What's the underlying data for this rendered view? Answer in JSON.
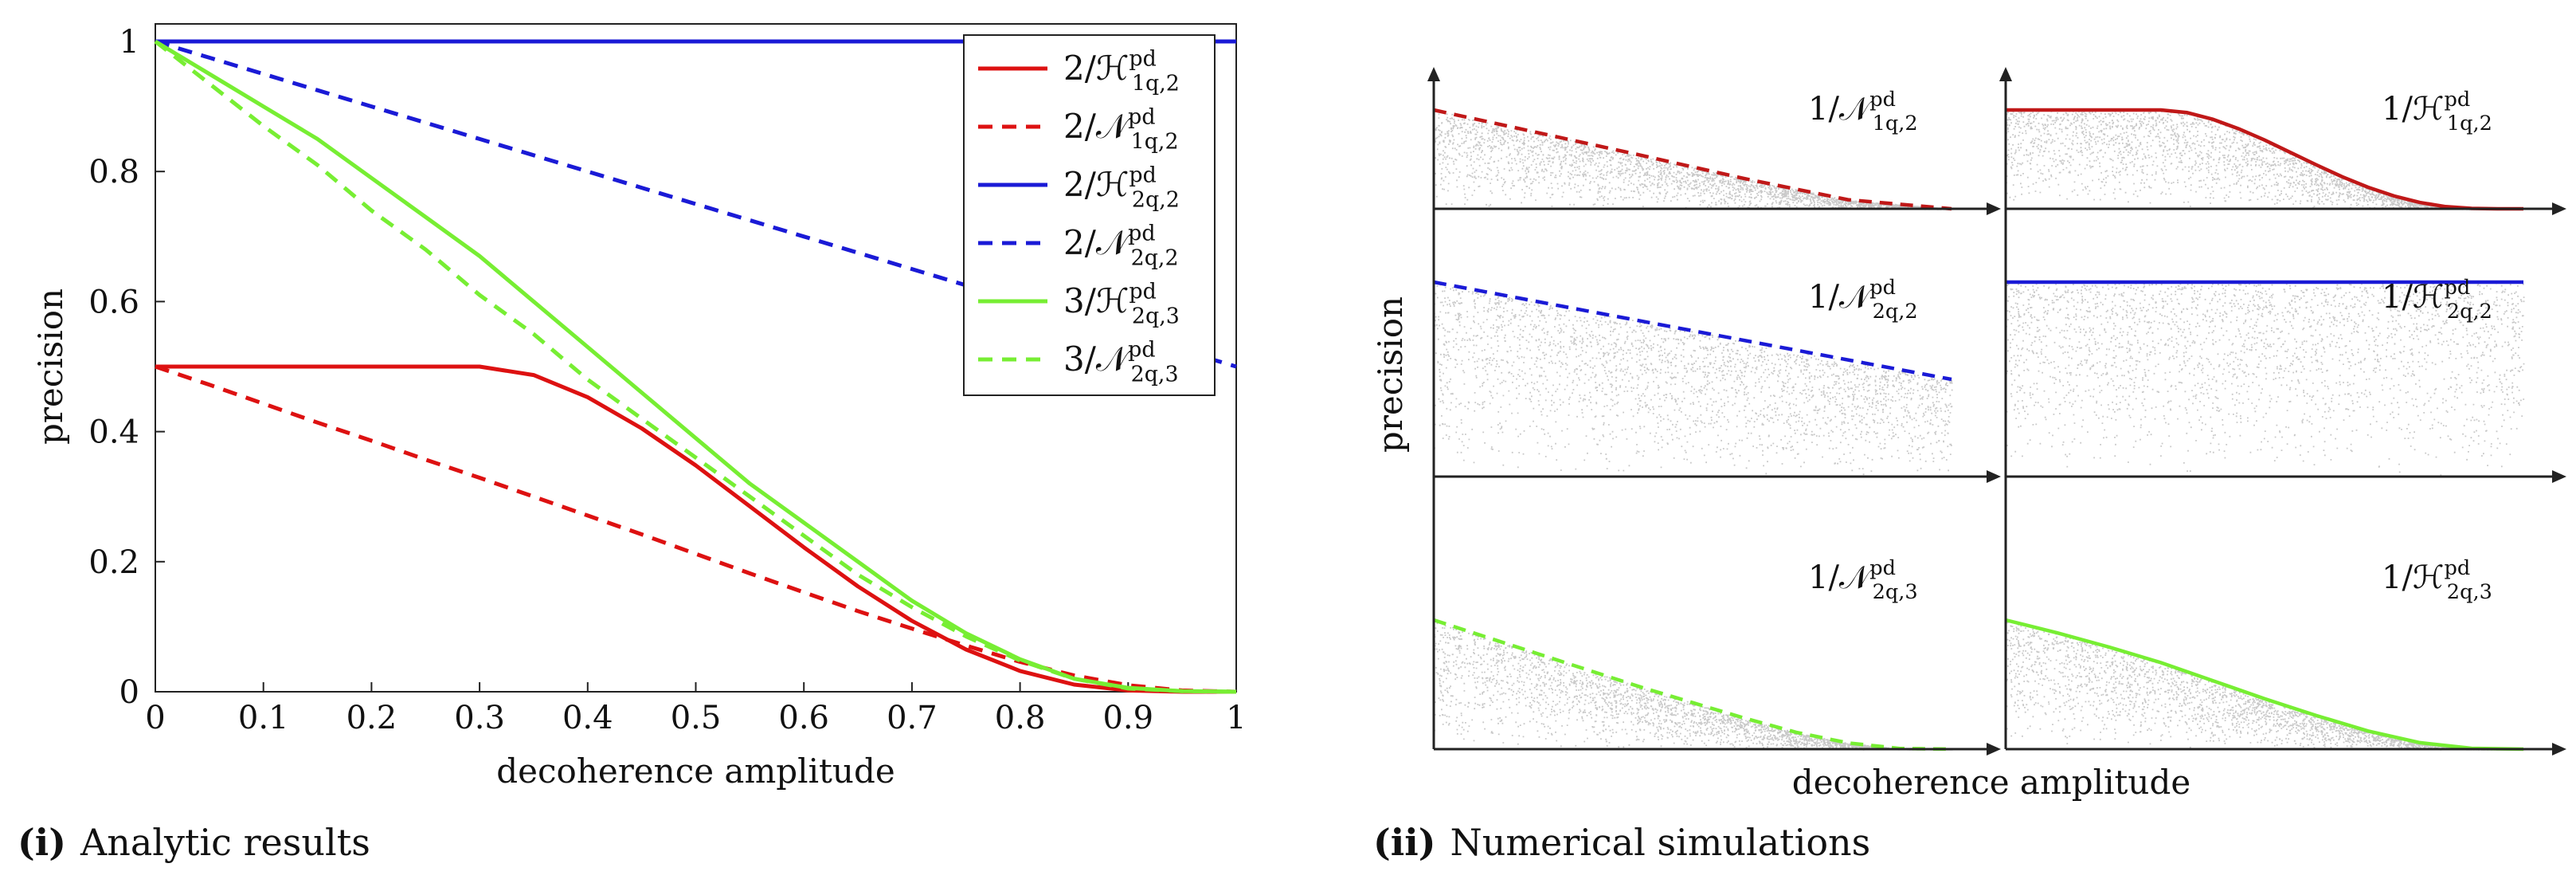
{
  "captions": [
    {
      "tag": "(i)",
      "text": "Analytic results"
    },
    {
      "tag": "(ii)",
      "text": "Numerical simulations"
    }
  ],
  "chart_data": [
    {
      "type": "line",
      "title": "",
      "xlabel": "decoherence amplitude",
      "ylabel": "precision",
      "xlim": [
        0,
        1
      ],
      "ylim": [
        0,
        1
      ],
      "xticks": [
        "0",
        "0.1",
        "0.2",
        "0.3",
        "0.4",
        "0.5",
        "0.6",
        "0.7",
        "0.8",
        "0.9",
        "1"
      ],
      "yticks": [
        "0",
        "0.2",
        "0.4",
        "0.6",
        "0.8",
        "1"
      ],
      "legend_position": "top-right",
      "x": [
        0,
        0.05,
        0.1,
        0.15,
        0.2,
        0.25,
        0.3,
        0.35,
        0.4,
        0.45,
        0.5,
        0.55,
        0.6,
        0.65,
        0.7,
        0.75,
        0.8,
        0.85,
        0.9,
        0.95,
        1
      ],
      "series": [
        {
          "name": "2/H1q,2",
          "legend": {
            "pre": "2/",
            "sym": "ℋ",
            "sup": "pd",
            "sub": "1q,2"
          },
          "color": "#dd1111",
          "style": "solid",
          "values": [
            0.5,
            0.5,
            0.5,
            0.5,
            0.5,
            0.5,
            0.5,
            0.487,
            0.453,
            0.405,
            0.348,
            0.285,
            0.222,
            0.162,
            0.109,
            0.065,
            0.032,
            0.011,
            0.002,
            0.0,
            0.0
          ]
        },
        {
          "name": "2/N1q,2",
          "legend": {
            "pre": "2/",
            "sym": "𝒩",
            "sup": "pd",
            "sub": "1q,2"
          },
          "color": "#dd1111",
          "style": "dashed",
          "values": [
            0.5,
            0.472,
            0.443,
            0.414,
            0.386,
            0.357,
            0.329,
            0.3,
            0.271,
            0.242,
            0.212,
            0.182,
            0.153,
            0.124,
            0.097,
            0.071,
            0.046,
            0.025,
            0.01,
            0.002,
            0.0
          ]
        },
        {
          "name": "2/H2q,2",
          "legend": {
            "pre": "2/",
            "sym": "ℋ",
            "sup": "pd",
            "sub": "2q,2"
          },
          "color": "#1a1ad6",
          "style": "solid",
          "values": [
            1,
            1,
            1,
            1,
            1,
            1,
            1,
            1,
            1,
            1,
            1,
            1,
            1,
            1,
            1,
            1,
            1,
            1,
            1,
            1,
            1
          ]
        },
        {
          "name": "2/N2q,2",
          "legend": {
            "pre": "2/",
            "sym": "𝒩",
            "sup": "pd",
            "sub": "2q,2"
          },
          "color": "#1a1ad6",
          "style": "dashed",
          "values": [
            1,
            0.975,
            0.95,
            0.925,
            0.9,
            0.875,
            0.85,
            0.825,
            0.8,
            0.775,
            0.75,
            0.725,
            0.7,
            0.675,
            0.65,
            0.625,
            0.6,
            0.575,
            0.55,
            0.525,
            0.5
          ]
        },
        {
          "name": "3/H2q,3",
          "legend": {
            "pre": "3/",
            "sym": "ℋ",
            "sup": "pd",
            "sub": "2q,3"
          },
          "color": "#77ee33",
          "style": "solid",
          "values": [
            1,
            0.95,
            0.9,
            0.85,
            0.79,
            0.73,
            0.67,
            0.6,
            0.53,
            0.46,
            0.39,
            0.32,
            0.26,
            0.2,
            0.14,
            0.09,
            0.05,
            0.02,
            0.006,
            0.001,
            0.0
          ]
        },
        {
          "name": "3/N2q,3",
          "legend": {
            "pre": "3/",
            "sym": "𝒩",
            "sup": "pd",
            "sub": "2q,3"
          },
          "color": "#77ee33",
          "style": "dashed",
          "values": [
            1,
            0.935,
            0.87,
            0.81,
            0.74,
            0.68,
            0.61,
            0.55,
            0.48,
            0.42,
            0.36,
            0.3,
            0.24,
            0.18,
            0.13,
            0.085,
            0.048,
            0.02,
            0.005,
            0.001,
            0.0
          ]
        }
      ]
    },
    {
      "type": "scatter",
      "title": "",
      "xlabel": "decoherence amplitude",
      "ylabel": "precision",
      "layout": "3x2 grid of panels, rows top to bottom, columns left to right",
      "panels": [
        {
          "pre": "1/",
          "sym": "𝒩",
          "sup": "pd",
          "sub": "1q,2",
          "color": "#c01818",
          "style": "dashed",
          "x": [
            0,
            0.2,
            0.4,
            0.6,
            0.8,
            1
          ],
          "values": [
            0.5,
            0.386,
            0.271,
            0.153,
            0.046,
            0.0
          ]
        },
        {
          "pre": "1/",
          "sym": "ℋ",
          "sup": "pd",
          "sub": "1q,2",
          "color": "#c01818",
          "style": "solid",
          "x": [
            0,
            0.1,
            0.2,
            0.3,
            0.35,
            0.4,
            0.45,
            0.5,
            0.55,
            0.6,
            0.65,
            0.7,
            0.75,
            0.8,
            0.85,
            0.9,
            0.95,
            1
          ],
          "values": [
            0.5,
            0.5,
            0.5,
            0.5,
            0.487,
            0.453,
            0.405,
            0.348,
            0.285,
            0.222,
            0.162,
            0.109,
            0.065,
            0.032,
            0.011,
            0.002,
            0.0,
            0.0
          ]
        },
        {
          "pre": "1/",
          "sym": "𝒩",
          "sup": "pd",
          "sub": "2q,2",
          "color": "#1a1ad6",
          "style": "dashed",
          "x": [
            0,
            1
          ],
          "values": [
            1,
            0.5
          ]
        },
        {
          "pre": "1/",
          "sym": "ℋ",
          "sup": "pd",
          "sub": "2q,2",
          "color": "#1a1ad6",
          "style": "solid",
          "x": [
            0,
            1
          ],
          "values": [
            1,
            1
          ]
        },
        {
          "pre": "1/",
          "sym": "𝒩",
          "sup": "pd",
          "sub": "2q,3",
          "color": "#77ee33",
          "style": "dashed",
          "x": [
            0,
            0.1,
            0.2,
            0.3,
            0.4,
            0.5,
            0.6,
            0.7,
            0.8,
            0.9,
            1
          ],
          "values": [
            1,
            0.87,
            0.74,
            0.61,
            0.48,
            0.36,
            0.24,
            0.13,
            0.048,
            0.005,
            0.0
          ]
        },
        {
          "pre": "1/",
          "sym": "ℋ",
          "sup": "pd",
          "sub": "2q,3",
          "color": "#77ee33",
          "style": "solid",
          "x": [
            0,
            0.1,
            0.2,
            0.3,
            0.4,
            0.5,
            0.6,
            0.7,
            0.8,
            0.9,
            1
          ],
          "values": [
            1,
            0.9,
            0.79,
            0.67,
            0.53,
            0.39,
            0.26,
            0.14,
            0.05,
            0.006,
            0.0
          ]
        }
      ]
    }
  ]
}
